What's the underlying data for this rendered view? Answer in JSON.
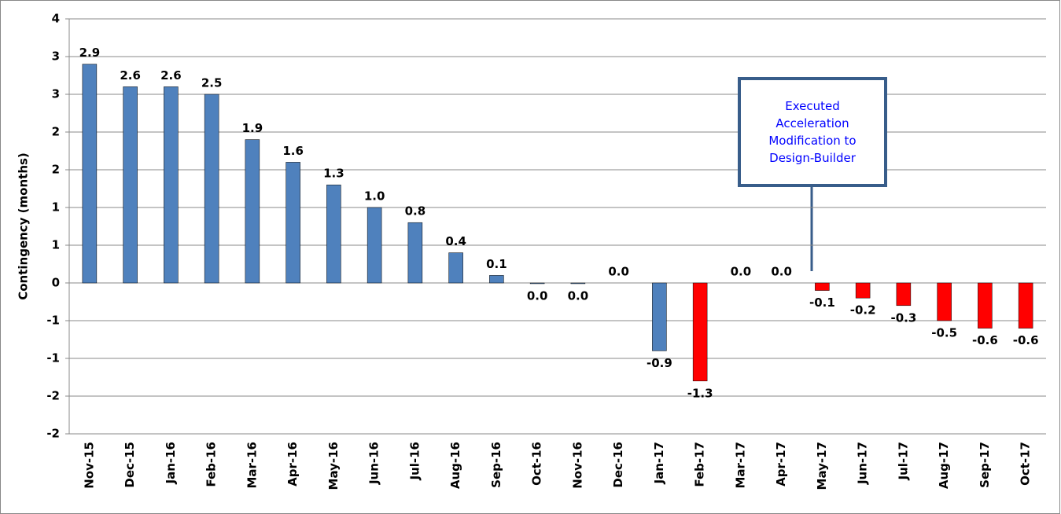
{
  "chart_data": {
    "type": "bar",
    "y_label": "Contingency (months)",
    "categories": [
      "Nov-15",
      "Dec-15",
      "Jan-16",
      "Feb-16",
      "Mar-16",
      "Apr-16",
      "May-16",
      "Jun-16",
      "Jul-16",
      "Aug-16",
      "Sep-16",
      "Oct-16",
      "Nov-16",
      "Dec-16",
      "Jan-17",
      "Feb-17",
      "Mar-17",
      "Apr-17",
      "May-17",
      "Jun-17",
      "Jul-17",
      "Aug-17",
      "Sep-17",
      "Oct-17"
    ],
    "values": [
      2.9,
      2.6,
      2.6,
      2.5,
      1.9,
      1.6,
      1.3,
      1.0,
      0.8,
      0.4,
      0.1,
      -0.01,
      -0.01,
      0.0,
      -0.9,
      -1.3,
      0.0,
      0.0,
      -0.1,
      -0.2,
      -0.3,
      -0.5,
      -0.6,
      -0.6
    ],
    "value_labels": [
      "2.9",
      "2.6",
      "2.6",
      "2.5",
      "1.9",
      "1.6",
      "1.3",
      "1.0",
      "0.8",
      "0.4",
      "0.1",
      "0.0",
      "0.0",
      "0.0",
      "-0.9",
      "-1.3",
      "0.0",
      "0.0",
      "-0.1",
      "-0.2",
      "-0.3",
      "-0.5",
      "-0.6",
      "-0.6"
    ],
    "colors": [
      "#4f81bd",
      "#4f81bd",
      "#4f81bd",
      "#4f81bd",
      "#4f81bd",
      "#4f81bd",
      "#4f81bd",
      "#4f81bd",
      "#4f81bd",
      "#4f81bd",
      "#4f81bd",
      "#4f81bd",
      "#4f81bd",
      "#4f81bd",
      "#4f81bd",
      "#ff0000",
      "#ff0000",
      "#ff0000",
      "#ff0000",
      "#ff0000",
      "#ff0000",
      "#ff0000",
      "#ff0000",
      "#ff0000"
    ],
    "ylim": [
      -2,
      3.5
    ],
    "yticks": [
      {
        "value": -2,
        "label": "-2"
      },
      {
        "value": -1.5,
        "label": "-2"
      },
      {
        "value": -1,
        "label": "-1"
      },
      {
        "value": -0.5,
        "label": "-1"
      },
      {
        "value": 0,
        "label": "0"
      },
      {
        "value": 0.5,
        "label": "1"
      },
      {
        "value": 1,
        "label": "1"
      },
      {
        "value": 1.5,
        "label": "2"
      },
      {
        "value": 2,
        "label": "2"
      },
      {
        "value": 2.5,
        "label": "3"
      },
      {
        "value": 3,
        "label": "3"
      },
      {
        "value": 3.5,
        "label": "4"
      }
    ],
    "grid": true,
    "annotation": "Executed Acceleration Modification to Design-Builder"
  }
}
